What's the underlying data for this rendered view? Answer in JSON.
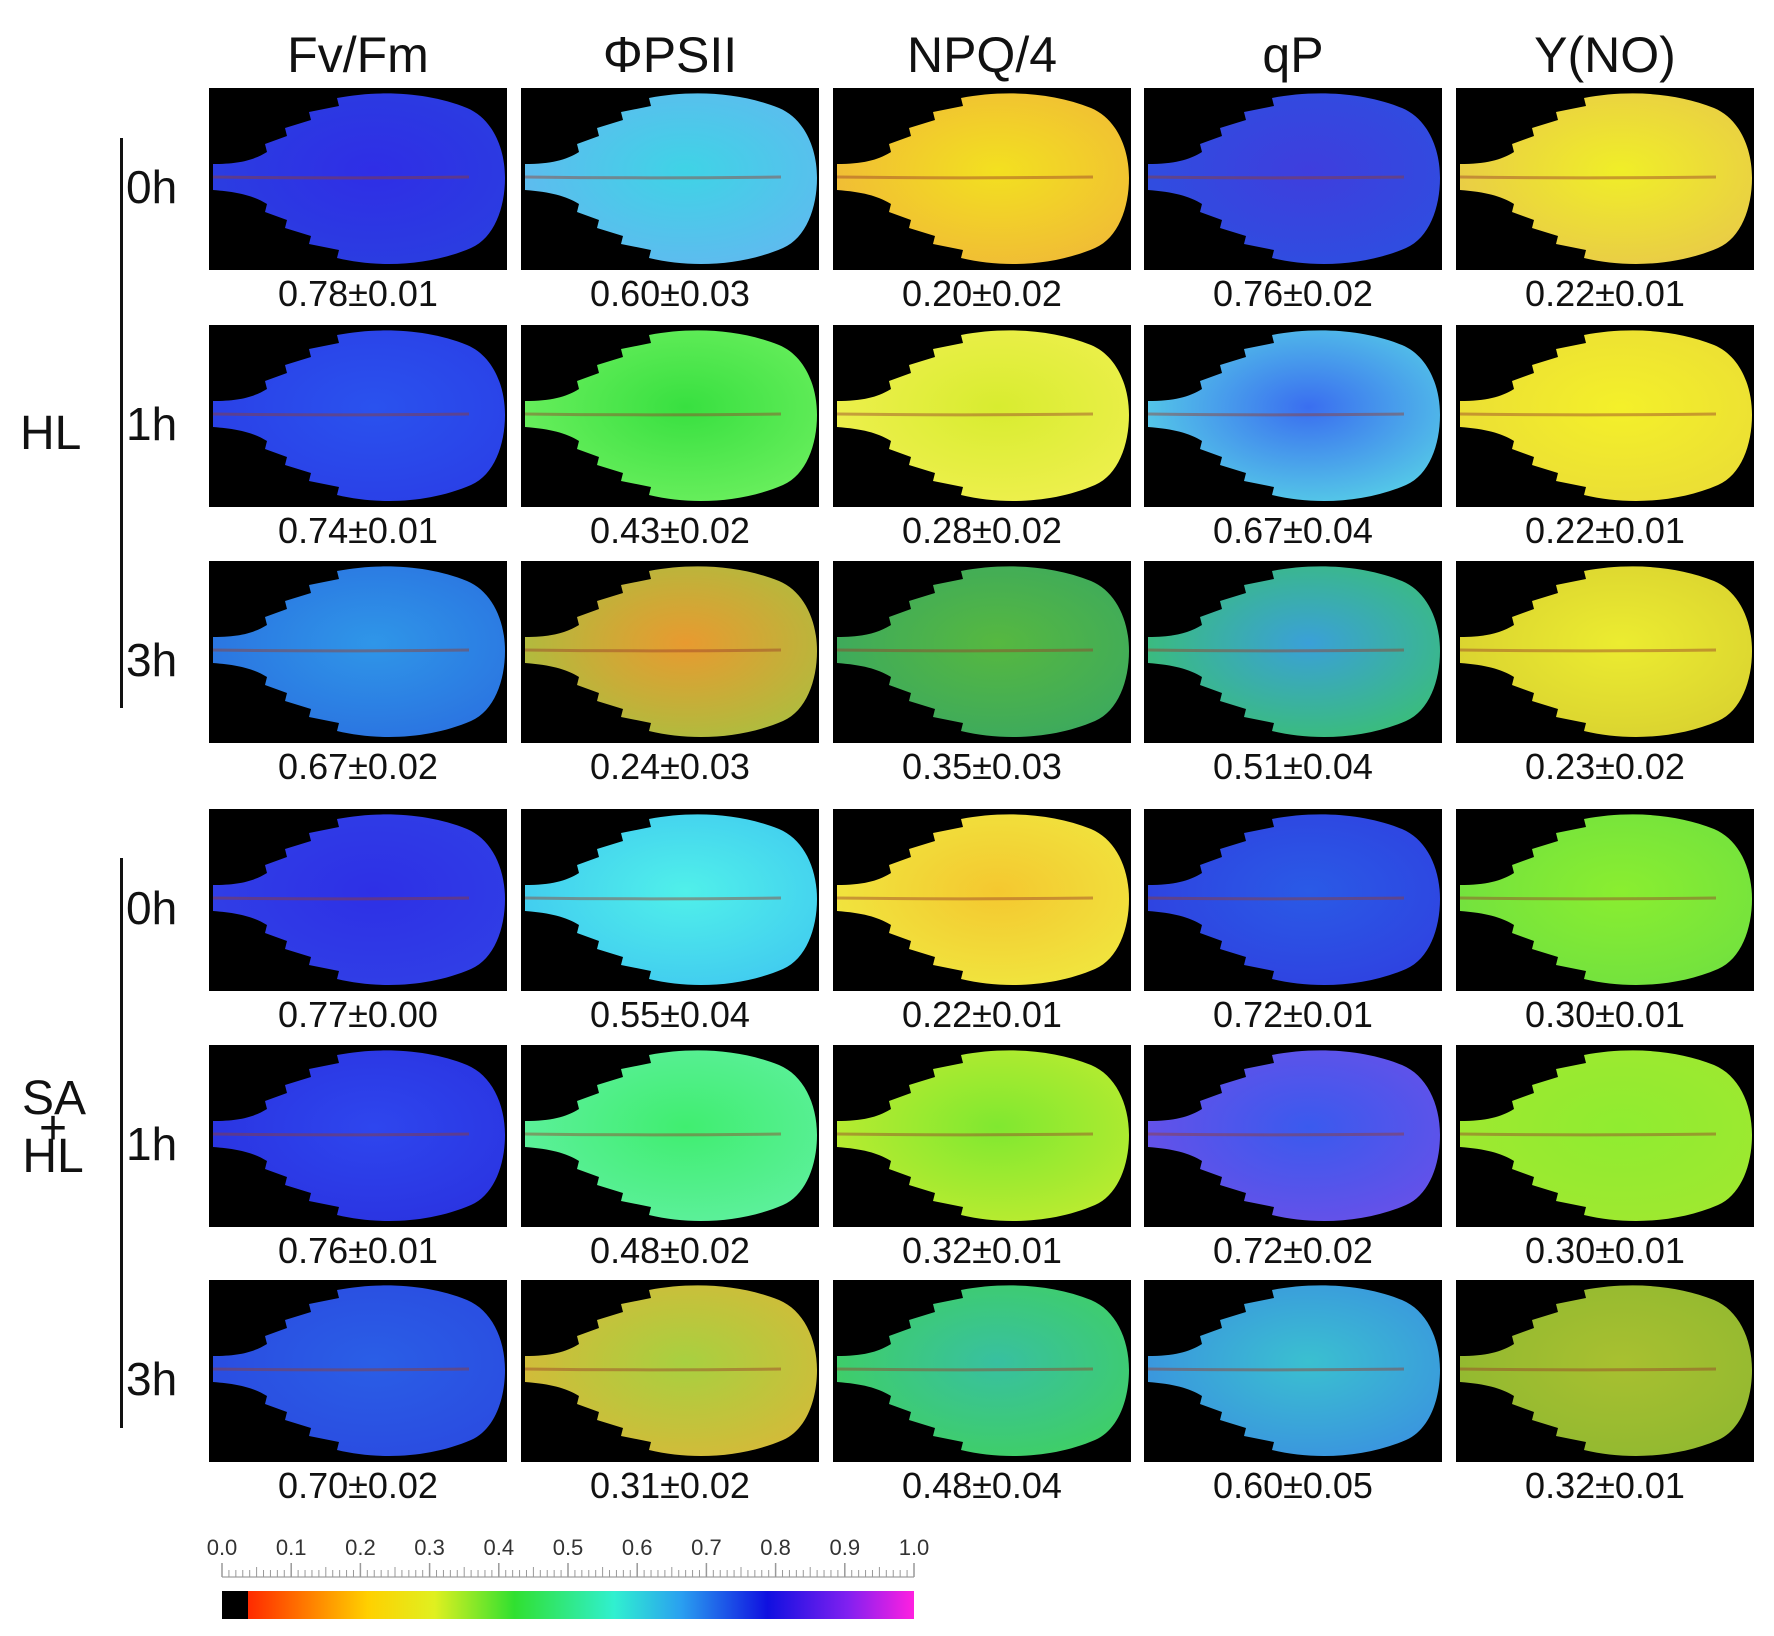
{
  "columns": [
    "Fv/Fm",
    "ΦPSII",
    "NPQ/4",
    "qP",
    "Y(NO)"
  ],
  "groups": [
    {
      "label": "HL",
      "rows": [
        {
          "time": "0h",
          "values": [
            "0.78±0.01",
            "0.60±0.03",
            "0.20±0.02",
            "0.76±0.02",
            "0.22±0.01"
          ],
          "colors": [
            [
              "#2f2ee6",
              "#2a3fe0"
            ],
            [
              "#3fd3e6",
              "#62b8f0"
            ],
            [
              "#f3e020",
              "#f0b838"
            ],
            [
              "#3e3ede",
              "#2d4fe0"
            ],
            [
              "#f0ee28",
              "#e8c84a"
            ]
          ]
        },
        {
          "time": "1h",
          "values": [
            "0.74±0.01",
            "0.43±0.02",
            "0.28±0.02",
            "0.67±0.04",
            "0.22±0.01"
          ],
          "colors": [
            [
              "#2a52ee",
              "#2a3ee6"
            ],
            [
              "#38e040",
              "#6ef060"
            ],
            [
              "#d8ec30",
              "#f0f050"
            ],
            [
              "#3a6ef0",
              "#58d4e6"
            ],
            [
              "#f4f02a",
              "#eadc36"
            ]
          ]
        },
        {
          "time": "3h",
          "values": [
            "0.67±0.02",
            "0.24±0.03",
            "0.35±0.03",
            "0.51±0.04",
            "0.23±0.02"
          ],
          "colors": [
            [
              "#2f96e8",
              "#2a70e0"
            ],
            [
              "#e89a30",
              "#a8c040"
            ],
            [
              "#56b840",
              "#3aa860"
            ],
            [
              "#3aa0d8",
              "#3ac070"
            ],
            [
              "#ecec30",
              "#d8d030"
            ]
          ]
        }
      ]
    },
    {
      "label": "SA+HL",
      "label_lines": [
        "SA",
        "+",
        "HL"
      ],
      "rows": [
        {
          "time": "0h",
          "values": [
            "0.77±0.00",
            "0.55±0.04",
            "0.22±0.01",
            "0.72±0.01",
            "0.30±0.01"
          ],
          "colors": [
            [
              "#2e30e6",
              "#3040e6"
            ],
            [
              "#50f0ea",
              "#40c8f0"
            ],
            [
              "#f4c830",
              "#f0e840"
            ],
            [
              "#2a5ae6",
              "#2f40e0"
            ],
            [
              "#8aee30",
              "#70e040"
            ]
          ]
        },
        {
          "time": "1h",
          "values": [
            "0.76±0.01",
            "0.48±0.02",
            "0.32±0.01",
            "0.72±0.02",
            "0.30±0.01"
          ],
          "colors": [
            [
              "#2e46ee",
              "#2a32e0"
            ],
            [
              "#40ee70",
              "#60f0a0"
            ],
            [
              "#80e830",
              "#c0ec30"
            ],
            [
              "#3a5aee",
              "#6a50e8"
            ],
            [
              "#90ec30",
              "#a0e830"
            ]
          ]
        },
        {
          "time": "3h",
          "values": [
            "0.70±0.02",
            "0.31±0.02",
            "0.48±0.04",
            "0.60±0.05",
            "0.32±0.01"
          ],
          "colors": [
            [
              "#2a5ee6",
              "#2a4ae0"
            ],
            [
              "#a8d040",
              "#d8b838"
            ],
            [
              "#38c0a0",
              "#40d060"
            ],
            [
              "#3ac0d0",
              "#3a90e0"
            ],
            [
              "#a8c030",
              "#90b830"
            ]
          ]
        }
      ]
    }
  ],
  "scale": {
    "ticks": [
      "0.0",
      "0.1",
      "0.2",
      "0.3",
      "0.4",
      "0.5",
      "0.6",
      "0.7",
      "0.8",
      "0.9",
      "1.0"
    ]
  }
}
